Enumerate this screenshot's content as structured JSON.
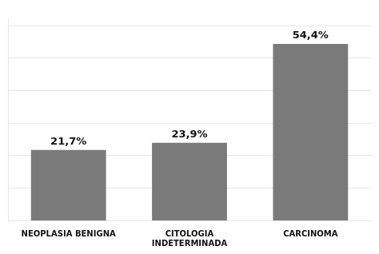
{
  "chart_data": {
    "type": "bar",
    "categories": [
      "NEOPLASIA BENIGNA",
      "CITOLOGIA\nINDETERMINADA",
      "CARCINOMA"
    ],
    "values": [
      21.7,
      23.9,
      54.4
    ],
    "value_labels": [
      "21,7%",
      "23,9%",
      "54,4%"
    ],
    "data_labels": true,
    "color": "#7a7a7a",
    "ylim": [
      0,
      62
    ],
    "yticks": [
      10,
      20,
      30,
      40,
      50,
      60
    ],
    "grid": true,
    "tick_labels": "x"
  }
}
